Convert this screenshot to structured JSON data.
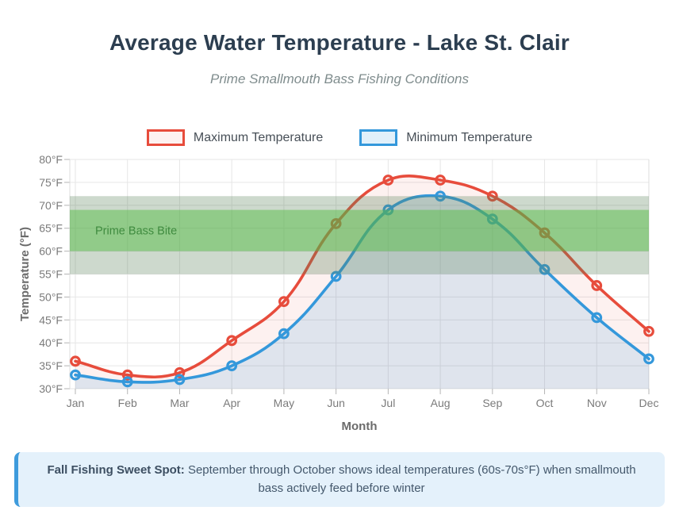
{
  "header": {
    "title": "Average Water Temperature - Lake St. Clair",
    "subtitle": "Prime Smallmouth Bass Fishing Conditions"
  },
  "chart_data": {
    "type": "line",
    "title": "Average Water Temperature - Lake St. Clair",
    "subtitle": "Prime Smallmouth Bass Fishing Conditions",
    "xlabel": "Month",
    "ylabel": "Temperature (°F)",
    "categories": [
      "Jan",
      "Feb",
      "Mar",
      "Apr",
      "May",
      "Jun",
      "Jul",
      "Aug",
      "Sep",
      "Oct",
      "Nov",
      "Dec"
    ],
    "ylim": [
      30,
      80
    ],
    "ytick_step": 5,
    "ytick_suffix": "°F",
    "grid": true,
    "legend_position": "top",
    "series": [
      {
        "name": "Maximum Temperature",
        "color": "#e74c3c",
        "fill_color": "rgba(231,76,60,0.08)",
        "values": [
          36,
          33,
          33.5,
          40.5,
          49,
          66,
          75.5,
          75.5,
          72,
          64,
          52.5,
          42.5
        ]
      },
      {
        "name": "Minimum Temperature",
        "color": "#3498db",
        "fill_color": "rgba(52,152,219,0.15)",
        "values": [
          33,
          31.5,
          32,
          35,
          42,
          54.5,
          69,
          72,
          67,
          56,
          45.5,
          36.5
        ]
      }
    ],
    "annotations": {
      "bands": [
        {
          "label": "",
          "from": 55,
          "to": 72,
          "color": "rgba(90,130,90,0.30)"
        },
        {
          "label": "Prime Bass Bite",
          "from": 60,
          "to": 69,
          "color": "rgba(85,190,70,0.50)",
          "label_color": "#3f8b3f"
        }
      ]
    },
    "axis": {
      "tick_label_color": "#7b7b7b",
      "axis_title_color": "#6b6b6b",
      "grid_color": "#e6e6e6",
      "border_color": "#dcdcdc",
      "tick_color": "#b5b5b5"
    }
  },
  "footer": {
    "lead": "Fall Fishing Sweet Spot:",
    "text": "September through October shows ideal temperatures (60s-70s°F) when smallmouth bass actively feed before winter"
  }
}
